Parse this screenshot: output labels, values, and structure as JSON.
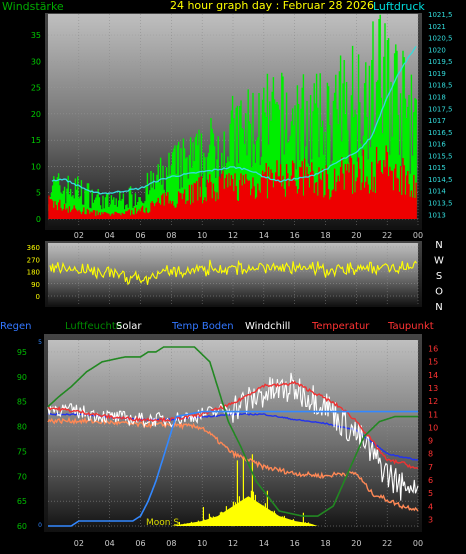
{
  "chart_data": [
    {
      "type": "area",
      "title": "24 hour graph day : Februar 28 2026",
      "left_label": "Windstärke",
      "right_label": "Luftdruck",
      "x_ticks": [
        "02",
        "04",
        "06",
        "08",
        "10",
        "12",
        "14",
        "16",
        "18",
        "20",
        "22",
        "00"
      ],
      "y_left_ticks": [
        "0",
        "5",
        "10",
        "15",
        "20",
        "25",
        "30",
        "35"
      ],
      "ylim_left": [
        0,
        39
      ],
      "y_right_ticks": [
        "1013",
        "1013,5",
        "1014",
        "1014,5",
        "1015",
        "1015,5",
        "1016",
        "1016,5",
        "1017",
        "1017,5",
        "1018",
        "1018,5",
        "1019",
        "1019,5",
        "1020",
        "1020,5",
        "1021",
        "1021,5"
      ],
      "ylim_right": [
        1012.8,
        1021.5
      ],
      "series": [
        {
          "name": "Windstärke",
          "color": "#00ee00",
          "style": "gust bars",
          "x": [
            0,
            2,
            4,
            6,
            8,
            10,
            12,
            14,
            16,
            18,
            20,
            22,
            24
          ],
          "y": [
            8,
            7,
            4,
            6,
            12,
            15,
            20,
            23,
            24,
            23,
            30,
            35,
            20
          ]
        },
        {
          "name": "Windstärke",
          "color": "#ee0000",
          "style": "mean bars",
          "x": [
            0,
            2,
            4,
            6,
            8,
            10,
            12,
            14,
            16,
            18,
            20,
            22,
            24
          ],
          "y": [
            4,
            2,
            1,
            2,
            5,
            7,
            8,
            9,
            10,
            9,
            11,
            12,
            9
          ]
        },
        {
          "name": "Luftdruck",
          "color": "#33dddd",
          "style": "line",
          "x": [
            0,
            1,
            2,
            3,
            4,
            5,
            6,
            7,
            8,
            9,
            10,
            11,
            12,
            13,
            14,
            15,
            16,
            17,
            18,
            19,
            20,
            21,
            22,
            23,
            24
          ],
          "y": [
            1014.4,
            1014.5,
            1014.2,
            1013.9,
            1013.9,
            1014.0,
            1014.1,
            1014.4,
            1014.6,
            1014.7,
            1014.8,
            1014.9,
            1015.0,
            1014.9,
            1014.6,
            1014.4,
            1014.5,
            1014.6,
            1014.9,
            1015.3,
            1015.6,
            1016.3,
            1018.0,
            1019.3,
            1020.2
          ]
        }
      ]
    },
    {
      "type": "line",
      "left_ticks": [
        "0",
        "90",
        "180",
        "270",
        "360"
      ],
      "ylim": [
        0,
        360
      ],
      "right_labels": [
        "N",
        "W",
        "S",
        "O",
        "N"
      ],
      "series": [
        {
          "name": "",
          "color": "#ffff00",
          "x": [
            0,
            2,
            4,
            6,
            8,
            10,
            12,
            14,
            16,
            18,
            20,
            22,
            24
          ],
          "y": [
            210,
            190,
            180,
            120,
            180,
            200,
            200,
            210,
            200,
            190,
            200,
            210,
            220
          ]
        }
      ]
    },
    {
      "type": "line",
      "legend": [
        {
          "label": "Regen",
          "color": "#3377ff"
        },
        {
          "label": "Luftfeuchte",
          "color": "#008800"
        },
        {
          "label": "Solar",
          "color": "#ffffff"
        },
        {
          "label": "Temp Boden",
          "color": "#3377ff"
        },
        {
          "label": "Windchill",
          "color": "#ffffff"
        },
        {
          "label": "Temperatur",
          "color": "#ff3333"
        },
        {
          "label": "Taupunkt",
          "color": "#ff3333"
        }
      ],
      "y_left_ticks": [
        "60",
        "65",
        "70",
        "75",
        "80",
        "85",
        "90",
        "95"
      ],
      "ylim_left": [
        60,
        97
      ],
      "y_right_ticks": [
        "3",
        "4",
        "5",
        "6",
        "7",
        "8",
        "9",
        "10",
        "11",
        "12",
        "13",
        "14",
        "15",
        "16"
      ],
      "ylim_right": [
        2.5,
        16.5
      ],
      "annotation": "Moon S",
      "series": [
        {
          "name": "Temperatur",
          "color": "#ee3333",
          "axis": "right",
          "x": [
            0,
            2,
            4,
            6,
            8,
            10,
            12,
            13,
            14,
            15,
            16,
            17,
            18,
            19,
            20,
            21,
            22,
            23,
            24
          ],
          "y": [
            11.5,
            11.2,
            10.8,
            10.6,
            10.6,
            11.0,
            11.8,
            12.5,
            13.2,
            13.2,
            13.4,
            12.8,
            12.2,
            11.5,
            10.5,
            9.0,
            7.5,
            7.3,
            6.8
          ]
        },
        {
          "name": "Windchill",
          "color": "#ffffff",
          "axis": "right",
          "x": [
            0,
            2,
            4,
            6,
            8,
            10,
            12,
            13,
            14,
            15,
            16,
            17,
            18,
            19,
            20,
            21,
            22,
            23,
            24
          ],
          "y": [
            11.5,
            11.2,
            10.8,
            10.6,
            10.6,
            11.0,
            11.5,
            12.0,
            12.6,
            12.8,
            13.0,
            12.4,
            11.8,
            10.5,
            9.5,
            8.0,
            6.5,
            5.5,
            5.5
          ]
        },
        {
          "name": "Taupunkt",
          "color": "#ff8855",
          "axis": "right",
          "x": [
            0,
            2,
            4,
            6,
            8,
            10,
            11,
            12,
            14,
            16,
            18,
            19,
            20,
            21,
            22,
            23,
            24
          ],
          "y": [
            10.5,
            10.5,
            10.4,
            10.2,
            10.2,
            10.0,
            9.0,
            8.0,
            7.0,
            6.5,
            6.3,
            6.5,
            6.5,
            5.0,
            4.5,
            4.0,
            3.8
          ]
        },
        {
          "name": "Temp Boden",
          "color": "#2233ee",
          "axis": "right",
          "x": [
            0,
            2,
            4,
            6,
            8,
            10,
            12,
            14,
            16,
            18,
            20,
            22,
            24
          ],
          "y": [
            11.0,
            11.0,
            10.8,
            10.6,
            10.6,
            10.8,
            11.0,
            11.0,
            10.6,
            10.3,
            9.8,
            8.0,
            7.5
          ]
        },
        {
          "name": "Luftfeuchte",
          "color": "#228822",
          "axis": "left",
          "x": [
            0,
            0.7,
            1.5,
            2.5,
            3.5,
            5,
            6,
            6.5,
            7,
            7.5,
            9.5,
            10.5,
            11,
            11.7,
            12.5,
            13.5,
            15,
            16.5,
            17.5,
            18.5,
            19.5,
            20.5,
            21.5,
            22.5,
            23.5,
            24
          ],
          "y": [
            84,
            86,
            88,
            91,
            93,
            94,
            94,
            95,
            95,
            96,
            96,
            93,
            88,
            81,
            76,
            69,
            63,
            62,
            62,
            64,
            71,
            78,
            81,
            82,
            82,
            82
          ]
        },
        {
          "name": "Regen",
          "color": "#3388ff",
          "axis": "left",
          "x": [
            0,
            1.5,
            2,
            5.5,
            6,
            6.5,
            7,
            7.5,
            8,
            8.3,
            10,
            12,
            14,
            16,
            18,
            20,
            22,
            24
          ],
          "y": [
            60,
            60,
            61,
            61,
            62,
            65,
            69,
            74,
            79,
            82,
            83,
            83,
            83,
            83,
            83,
            83,
            83,
            83
          ]
        },
        {
          "name": "Solar",
          "color": "#ffff00",
          "axis": "left",
          "x": [
            8,
            9,
            10,
            11,
            12,
            12.5,
            13,
            13.5,
            14,
            15,
            16,
            17,
            17.5
          ],
          "y": [
            60,
            60.5,
            61,
            62,
            64,
            65,
            66,
            65,
            64,
            62,
            61,
            60.5,
            60
          ]
        }
      ],
      "x_ticks": [
        "02",
        "04",
        "06",
        "08",
        "10",
        "12",
        "14",
        "16",
        "18",
        "20",
        "22",
        "00"
      ]
    }
  ]
}
